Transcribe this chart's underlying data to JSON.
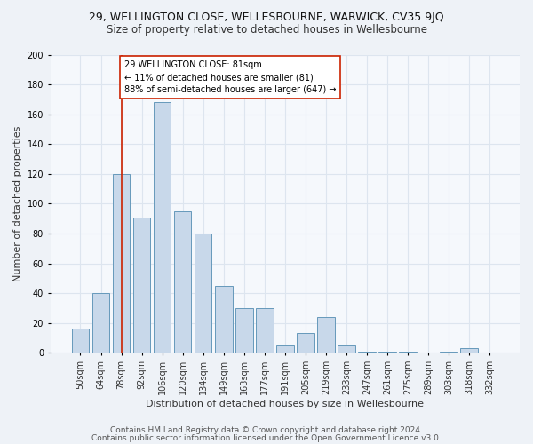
{
  "title1": "29, WELLINGTON CLOSE, WELLESBOURNE, WARWICK, CV35 9JQ",
  "title2": "Size of property relative to detached houses in Wellesbourne",
  "xlabel": "Distribution of detached houses by size in Wellesbourne",
  "ylabel": "Number of detached properties",
  "categories": [
    "50sqm",
    "64sqm",
    "78sqm",
    "92sqm",
    "106sqm",
    "120sqm",
    "134sqm",
    "149sqm",
    "163sqm",
    "177sqm",
    "191sqm",
    "205sqm",
    "219sqm",
    "233sqm",
    "247sqm",
    "261sqm",
    "275sqm",
    "289sqm",
    "303sqm",
    "318sqm",
    "332sqm"
  ],
  "values": [
    16,
    40,
    120,
    91,
    168,
    95,
    80,
    45,
    30,
    30,
    5,
    13,
    24,
    5,
    1,
    1,
    1,
    0,
    1,
    3,
    0
  ],
  "bar_color": "#c8d8ea",
  "bar_edge_color": "#6699bb",
  "vline_x_idx": 2,
  "vline_color": "#cc2200",
  "annotation_text": "29 WELLINGTON CLOSE: 81sqm\n← 11% of detached houses are smaller (81)\n88% of semi-detached houses are larger (647) →",
  "annotation_box_color": "white",
  "annotation_box_edge": "#cc2200",
  "ylim_max": 200,
  "yticks": [
    0,
    20,
    40,
    60,
    80,
    100,
    120,
    140,
    160,
    180,
    200
  ],
  "footer1": "Contains HM Land Registry data © Crown copyright and database right 2024.",
  "footer2": "Contains public sector information licensed under the Open Government Licence v3.0.",
  "bg_color": "#eef2f7",
  "plot_bg_color": "#f5f8fc",
  "grid_color": "#dde5ef",
  "title1_fontsize": 9,
  "title2_fontsize": 8.5,
  "xlabel_fontsize": 8,
  "ylabel_fontsize": 8,
  "annot_fontsize": 7,
  "tick_fontsize": 7,
  "footer_fontsize": 6.5
}
